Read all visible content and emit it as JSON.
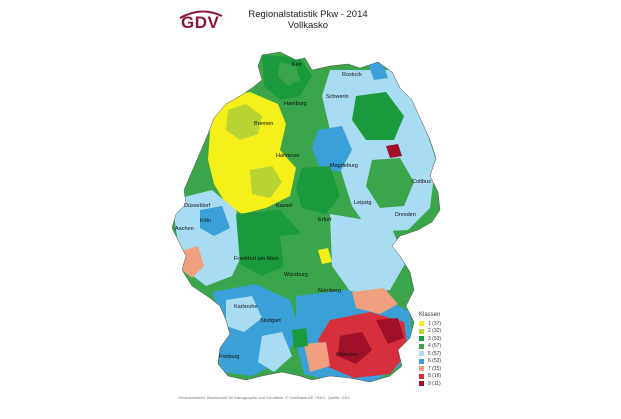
{
  "header": {
    "logo_text": "GDV",
    "title_line1": "Regionalstatistik Pkw - 2014",
    "title_line2": "Vollkasko"
  },
  "colors": {
    "k1": "#f5ef1a",
    "k2": "#b7d433",
    "k3": "#1a9a3c",
    "k4": "#3aa54a",
    "k5": "#a8dcf2",
    "k6": "#3b9fd8",
    "k7": "#f0a07e",
    "k8": "#d6303c",
    "k9": "#a0102a",
    "logo": "#8a1538"
  },
  "cities": [
    {
      "name": "Kiel"
    },
    {
      "name": "Rostock"
    },
    {
      "name": "Schwerin"
    },
    {
      "name": "Hamburg"
    },
    {
      "name": "Bremen"
    },
    {
      "name": "Hannover"
    },
    {
      "name": "Magdeburg"
    },
    {
      "name": "Cottbus"
    },
    {
      "name": "Leipzig"
    },
    {
      "name": "Dresden"
    },
    {
      "name": "Kassel"
    },
    {
      "name": "Erfurt"
    },
    {
      "name": "Düsseldorf"
    },
    {
      "name": "Köln"
    },
    {
      "name": "Aachen"
    },
    {
      "name": "Frankfurt am Main"
    },
    {
      "name": "Würzburg"
    },
    {
      "name": "Nürnberg"
    },
    {
      "name": "Karlsruhe"
    },
    {
      "name": "Stuttgart"
    },
    {
      "name": "München"
    },
    {
      "name": "Freiburg"
    }
  ],
  "legend": {
    "title": "Klassen",
    "items": [
      {
        "label": "1   (37)",
        "color": "#f5ef1a"
      },
      {
        "label": "2   (32)",
        "color": "#b7d433"
      },
      {
        "label": "3   (53)",
        "color": "#1a9a3c"
      },
      {
        "label": "4   (57)",
        "color": "#3aa54a"
      },
      {
        "label": "5   (57)",
        "color": "#a8dcf2"
      },
      {
        "label": "6   (53)",
        "color": "#3b9fd8"
      },
      {
        "label": "7   (15)",
        "color": "#f0a07e"
      },
      {
        "label": "8   (16)",
        "color": "#d6303c"
      },
      {
        "label": "9   (11)",
        "color": "#a0102a"
      }
    ]
  },
  "footnote": "Geobasisdaten: Bundesamt für Kartographie und Geodäsie, © GeoBasis-DE / BKG, Quelle: GDV"
}
